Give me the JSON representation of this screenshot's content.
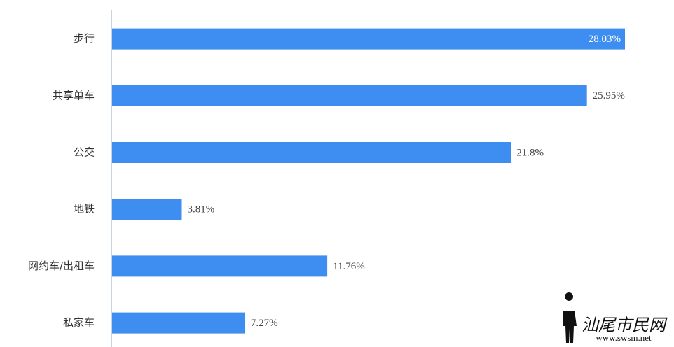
{
  "chart_data": {
    "type": "bar",
    "orientation": "horizontal",
    "categories": [
      "步行",
      "共享单车",
      "公交",
      "地铁",
      "网约车/出租车",
      "私家车"
    ],
    "values": [
      28.03,
      25.95,
      21.8,
      3.81,
      11.76,
      7.27
    ],
    "value_labels": [
      "28.03%",
      "25.95%",
      "21.8%",
      "3.81%",
      "11.76%",
      "7.27%"
    ],
    "color": "#3d8ef0"
  },
  "watermark": {
    "text": "汕尾市民网",
    "url": "www.swsm.net"
  }
}
